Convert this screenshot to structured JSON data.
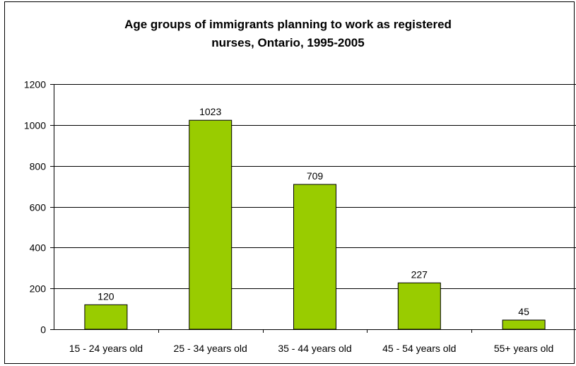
{
  "chart_data": {
    "type": "bar",
    "title_lines": [
      "Age groups of immigrants planning to work as registered",
      "nurses, Ontario, 1995-2005"
    ],
    "categories": [
      "15 - 24 years old",
      "25 - 34 years old",
      "35 - 44 years old",
      "45 - 54 years old",
      "55+ years old"
    ],
    "values": [
      120,
      1023,
      709,
      227,
      45
    ],
    "data_labels": [
      "120",
      "1023",
      "709",
      "227",
      "45"
    ],
    "xlabel": "",
    "ylabel": "",
    "ylim": [
      0,
      1200
    ],
    "yticks": [
      0,
      200,
      400,
      600,
      800,
      1000,
      1200
    ],
    "grid": true,
    "legend": "none",
    "bar_color": "#99CC00",
    "bar_edge_color": "#000000"
  }
}
